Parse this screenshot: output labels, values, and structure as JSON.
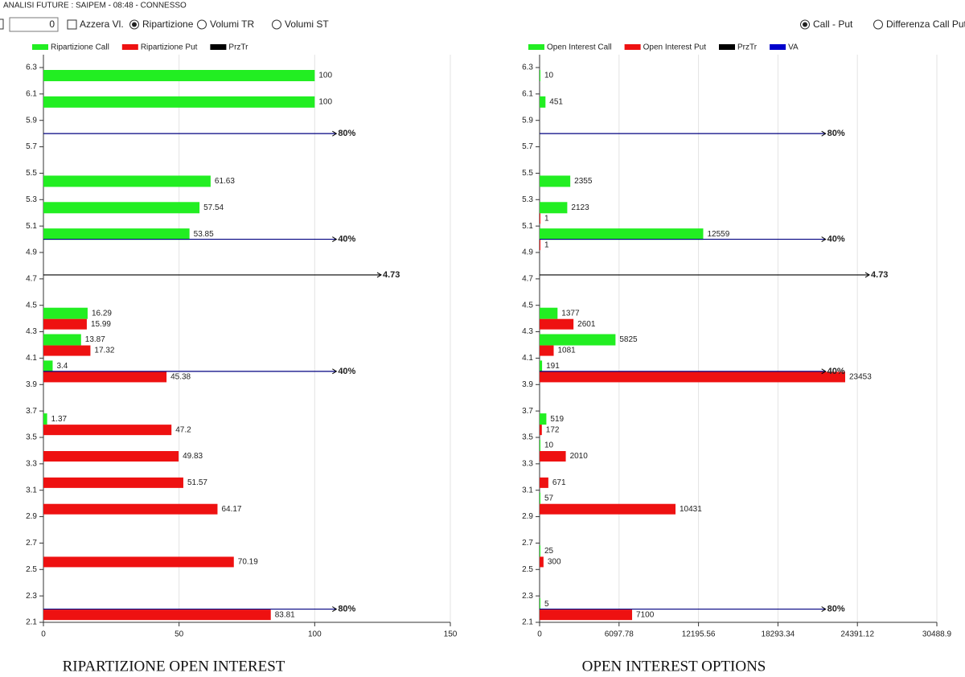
{
  "header": {
    "title": "ANALISI FUTURE : SAIPEM - 08:48 - CONNESSO"
  },
  "toolbar": {
    "input_value": 0,
    "reset_label": "Azzera Vl.",
    "modes": [
      {
        "label": "Ripartizione",
        "checked": true
      },
      {
        "label": "Volumi TR",
        "checked": false
      },
      {
        "label": "Volumi ST",
        "checked": false
      }
    ],
    "views": [
      {
        "label": "Call - Put",
        "checked": true
      },
      {
        "label": "Differenza Call Put",
        "checked": false
      }
    ]
  },
  "chart_data": [
    {
      "type": "bar",
      "orientation": "horizontal",
      "title": "RIPARTIZIONE OPEN INTEREST",
      "y": [
        6.3,
        6.1,
        5.5,
        5.3,
        5.1,
        4.5,
        4.3,
        4.1,
        3.7,
        3.5,
        3.3,
        3.1,
        2.7,
        2.3
      ],
      "series": [
        {
          "name": "Ripartizione Call",
          "color": "#22ee22",
          "values": [
            100,
            100,
            61.63,
            57.54,
            53.85,
            16.29,
            13.87,
            3.4,
            1.37,
            null,
            null,
            null,
            null,
            null
          ]
        },
        {
          "name": "Ripartizione Put",
          "color": "#ee1111",
          "values": [
            null,
            null,
            null,
            null,
            null,
            15.99,
            17.32,
            45.38,
            47.2,
            49.83,
            51.57,
            64.17,
            70.19,
            83.81
          ]
        }
      ],
      "legend_extra": [
        {
          "name": "PrzTr",
          "color": "#000000"
        }
      ],
      "levels": [
        {
          "value": 5.8,
          "label": "80%",
          "color": "#000080"
        },
        {
          "value": 5.0,
          "label": "40%",
          "color": "#000080"
        },
        {
          "value": 4.73,
          "color": "#000000"
        },
        {
          "value": 4.0,
          "label": "40%",
          "color": "#000080"
        },
        {
          "value": 2.2,
          "label": "80%",
          "color": "#000080"
        }
      ],
      "xlim": [
        0,
        150
      ],
      "xticks": [
        0,
        50,
        100,
        150
      ],
      "ylim": [
        2.1,
        6.3
      ],
      "yticks": [
        6.3,
        6.1,
        5.9,
        5.7,
        5.5,
        5.3,
        5.1,
        4.9,
        4.7,
        4.5,
        4.3,
        4.1,
        3.9,
        3.7,
        3.5,
        3.3,
        3.1,
        2.9,
        2.7,
        2.5,
        2.3,
        2.1
      ],
      "grid": true
    },
    {
      "type": "bar",
      "orientation": "horizontal",
      "title": "OPEN INTEREST OPTIONS",
      "y": [
        6.3,
        6.1,
        5.5,
        5.3,
        5.1,
        4.5,
        4.3,
        4.1,
        3.7,
        3.5,
        3.3,
        3.1,
        2.7,
        2.3
      ],
      "series": [
        {
          "name": "Open Interest Call",
          "color": "#22ee22",
          "values": [
            10,
            451,
            2355,
            2123,
            12559,
            1377,
            5825,
            191,
            519,
            10,
            null,
            57,
            25,
            5
          ]
        },
        {
          "name": "Open Interest Put",
          "color": "#ee1111",
          "values": [
            null,
            null,
            null,
            1,
            1,
            2601,
            1081,
            23453,
            172,
            2010,
            671,
            10431,
            300,
            7100
          ]
        }
      ],
      "legend_extra": [
        {
          "name": "PrzTr",
          "color": "#000000"
        },
        {
          "name": "VA",
          "color": "#0000cc"
        }
      ],
      "levels": [
        {
          "value": 5.8,
          "label": "80%",
          "color": "#000080"
        },
        {
          "value": 5.0,
          "label": "40%",
          "color": "#000080"
        },
        {
          "value": 4.73,
          "color": "#000000"
        },
        {
          "value": 4.0,
          "label": "40%",
          "color": "#000080"
        },
        {
          "value": 2.2,
          "label": "80%",
          "color": "#000080"
        }
      ],
      "xlim": [
        0,
        30488.9
      ],
      "xticks": [
        0,
        6097.78,
        12195.56,
        18293.34,
        24391.12,
        30488.9
      ],
      "ylim": [
        2.1,
        6.3
      ],
      "yticks": [
        6.3,
        6.1,
        5.9,
        5.7,
        5.5,
        5.3,
        5.1,
        4.9,
        4.7,
        4.5,
        4.3,
        4.1,
        3.9,
        3.7,
        3.5,
        3.3,
        3.1,
        2.9,
        2.7,
        2.5,
        2.3,
        2.1
      ],
      "grid": true
    }
  ]
}
